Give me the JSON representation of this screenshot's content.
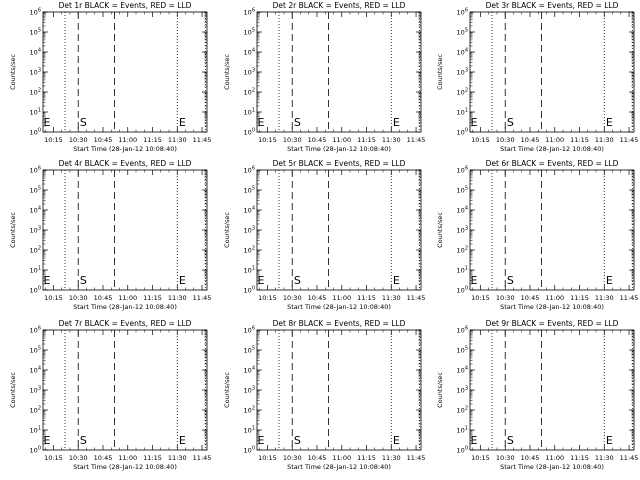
{
  "chart_data": [
    {
      "type": "line",
      "title": "Det 1r BLACK = Events, RED = LLD",
      "xlabel": "Start Time (28-Jan-12 10:08:40)",
      "ylabel": "Counts/sec",
      "xticks": [
        "10:15",
        "10:30",
        "10:45",
        "11:00",
        "11:15",
        "11:30",
        "11:45"
      ],
      "yticks": [
        "10^6",
        "10^5",
        "10^4",
        "10^3",
        "10^2",
        "10^1",
        "10^0"
      ],
      "xlim": [
        "10:08:40",
        "11:48:00"
      ],
      "ylim": [
        1,
        1000000
      ],
      "yscale": "log",
      "series": [],
      "annotations": [
        {
          "text": "E",
          "x": "10:09"
        },
        {
          "text": "S",
          "x": "10:31"
        },
        {
          "text": "E",
          "x": "11:31"
        }
      ],
      "dotted_lines_x": [
        "10:22",
        "11:30",
        "11:47"
      ],
      "dashed_lines_x": [
        "10:30",
        "10:52"
      ],
      "grid": false
    },
    {
      "type": "line",
      "title": "Det 2r BLACK = Events, RED = LLD",
      "xlabel": "Start Time (28-Jan-12 10:08:40)",
      "ylabel": "Counts/sec",
      "xticks": [
        "10:15",
        "10:30",
        "10:45",
        "11:00",
        "11:15",
        "11:30",
        "11:45"
      ],
      "yticks": [
        "10^6",
        "10^5",
        "10^4",
        "10^3",
        "10^2",
        "10^1",
        "10^0"
      ],
      "xlim": [
        "10:08:40",
        "11:48:00"
      ],
      "ylim": [
        1,
        1000000
      ],
      "yscale": "log",
      "series": [],
      "annotations": [
        {
          "text": "E",
          "x": "10:09"
        },
        {
          "text": "S",
          "x": "10:31"
        },
        {
          "text": "E",
          "x": "11:31"
        }
      ],
      "dotted_lines_x": [
        "10:22",
        "11:30",
        "11:47"
      ],
      "dashed_lines_x": [
        "10:30",
        "10:52"
      ],
      "grid": false
    },
    {
      "type": "line",
      "title": "Det 3r BLACK = Events, RED = LLD",
      "xlabel": "Start Time (28-Jan-12 10:08:40)",
      "ylabel": "Counts/sec",
      "xticks": [
        "10:15",
        "10:30",
        "10:45",
        "11:00",
        "11:15",
        "11:30",
        "11:45"
      ],
      "yticks": [
        "10^6",
        "10^5",
        "10^4",
        "10^3",
        "10^2",
        "10^1",
        "10^0"
      ],
      "xlim": [
        "10:08:40",
        "11:48:00"
      ],
      "ylim": [
        1,
        1000000
      ],
      "yscale": "log",
      "series": [],
      "annotations": [
        {
          "text": "E",
          "x": "10:09"
        },
        {
          "text": "S",
          "x": "10:31"
        },
        {
          "text": "E",
          "x": "11:31"
        }
      ],
      "dotted_lines_x": [
        "10:22",
        "11:30",
        "11:47"
      ],
      "dashed_lines_x": [
        "10:30",
        "10:52"
      ],
      "grid": false
    },
    {
      "type": "line",
      "title": "Det 4r BLACK = Events, RED = LLD",
      "xlabel": "Start Time (28-Jan-12 10:08:40)",
      "ylabel": "Counts/sec",
      "xticks": [
        "10:15",
        "10:30",
        "10:45",
        "11:00",
        "11:15",
        "11:30",
        "11:45"
      ],
      "yticks": [
        "10^6",
        "10^5",
        "10^4",
        "10^3",
        "10^2",
        "10^1",
        "10^0"
      ],
      "xlim": [
        "10:08:40",
        "11:48:00"
      ],
      "ylim": [
        1,
        1000000
      ],
      "yscale": "log",
      "series": [],
      "annotations": [
        {
          "text": "E",
          "x": "10:09"
        },
        {
          "text": "S",
          "x": "10:31"
        },
        {
          "text": "E",
          "x": "11:31"
        }
      ],
      "dotted_lines_x": [
        "10:22",
        "11:30",
        "11:47"
      ],
      "dashed_lines_x": [
        "10:30",
        "10:52"
      ],
      "grid": false
    },
    {
      "type": "line",
      "title": "Det 5r BLACK = Events, RED = LLD",
      "xlabel": "Start Time (28-Jan-12 10:08:40)",
      "ylabel": "Counts/sec",
      "xticks": [
        "10:15",
        "10:30",
        "10:45",
        "11:00",
        "11:15",
        "11:30",
        "11:45"
      ],
      "yticks": [
        "10^6",
        "10^5",
        "10^4",
        "10^3",
        "10^2",
        "10^1",
        "10^0"
      ],
      "xlim": [
        "10:08:40",
        "11:48:00"
      ],
      "ylim": [
        1,
        1000000
      ],
      "yscale": "log",
      "series": [],
      "annotations": [
        {
          "text": "E",
          "x": "10:09"
        },
        {
          "text": "S",
          "x": "10:31"
        },
        {
          "text": "E",
          "x": "11:31"
        }
      ],
      "dotted_lines_x": [
        "10:22",
        "11:30",
        "11:47"
      ],
      "dashed_lines_x": [
        "10:30",
        "10:52"
      ],
      "grid": false
    },
    {
      "type": "line",
      "title": "Det 6r BLACK = Events, RED = LLD",
      "xlabel": "Start Time (28-Jan-12 10:08:40)",
      "ylabel": "Counts/sec",
      "xticks": [
        "10:15",
        "10:30",
        "10:45",
        "11:00",
        "11:15",
        "11:30",
        "11:45"
      ],
      "yticks": [
        "10^6",
        "10^5",
        "10^4",
        "10^3",
        "10^2",
        "10^1",
        "10^0"
      ],
      "xlim": [
        "10:08:40",
        "11:48:00"
      ],
      "ylim": [
        1,
        1000000
      ],
      "yscale": "log",
      "series": [],
      "annotations": [
        {
          "text": "E",
          "x": "10:09"
        },
        {
          "text": "S",
          "x": "10:31"
        },
        {
          "text": "E",
          "x": "11:31"
        }
      ],
      "dotted_lines_x": [
        "10:22",
        "11:30",
        "11:47"
      ],
      "dashed_lines_x": [
        "10:30",
        "10:52"
      ],
      "grid": false
    },
    {
      "type": "line",
      "title": "Det 7r BLACK = Events, RED = LLD",
      "xlabel": "Start Time (28-Jan-12 10:08:40)",
      "ylabel": "Counts/sec",
      "xticks": [
        "10:15",
        "10:30",
        "10:45",
        "11:00",
        "11:15",
        "11:30",
        "11:45"
      ],
      "yticks": [
        "10^6",
        "10^5",
        "10^4",
        "10^3",
        "10^2",
        "10^1",
        "10^0"
      ],
      "xlim": [
        "10:08:40",
        "11:48:00"
      ],
      "ylim": [
        1,
        1000000
      ],
      "yscale": "log",
      "series": [],
      "annotations": [
        {
          "text": "E",
          "x": "10:09"
        },
        {
          "text": "S",
          "x": "10:31"
        },
        {
          "text": "E",
          "x": "11:31"
        }
      ],
      "dotted_lines_x": [
        "10:22",
        "11:30",
        "11:47"
      ],
      "dashed_lines_x": [
        "10:30",
        "10:52"
      ],
      "grid": false
    },
    {
      "type": "line",
      "title": "Det 8r BLACK = Events, RED = LLD",
      "xlabel": "Start Time (28-Jan-12 10:08:40)",
      "ylabel": "Counts/sec",
      "xticks": [
        "10:15",
        "10:30",
        "10:45",
        "11:00",
        "11:15",
        "11:30",
        "11:45"
      ],
      "yticks": [
        "10^6",
        "10^5",
        "10^4",
        "10^3",
        "10^2",
        "10^1",
        "10^0"
      ],
      "xlim": [
        "10:08:40",
        "11:48:00"
      ],
      "ylim": [
        1,
        1000000
      ],
      "yscale": "log",
      "series": [],
      "annotations": [
        {
          "text": "E",
          "x": "10:09"
        },
        {
          "text": "S",
          "x": "10:31"
        },
        {
          "text": "E",
          "x": "11:31"
        }
      ],
      "dotted_lines_x": [
        "10:22",
        "11:30",
        "11:47"
      ],
      "dashed_lines_x": [
        "10:30",
        "10:52"
      ],
      "grid": false
    },
    {
      "type": "line",
      "title": "Det 9r BLACK = Events, RED = LLD",
      "xlabel": "Start Time (28-Jan-12 10:08:40)",
      "ylabel": "Counts/sec",
      "xticks": [
        "10:15",
        "10:30",
        "10:45",
        "11:00",
        "11:15",
        "11:30",
        "11:45"
      ],
      "yticks": [
        "10^6",
        "10^5",
        "10^4",
        "10^3",
        "10^2",
        "10^1",
        "10^0"
      ],
      "xlim": [
        "10:08:40",
        "11:48:00"
      ],
      "ylim": [
        1,
        1000000
      ],
      "yscale": "log",
      "series": [],
      "annotations": [
        {
          "text": "E",
          "x": "10:09"
        },
        {
          "text": "S",
          "x": "10:31"
        },
        {
          "text": "E",
          "x": "11:31"
        }
      ],
      "dotted_lines_x": [
        "10:22",
        "11:30",
        "11:47"
      ],
      "dashed_lines_x": [
        "10:30",
        "10:52"
      ],
      "grid": false
    }
  ],
  "colors": {
    "events": "#000000",
    "lld": "#ff0000",
    "axes": "#000000",
    "background": "#ffffff"
  }
}
